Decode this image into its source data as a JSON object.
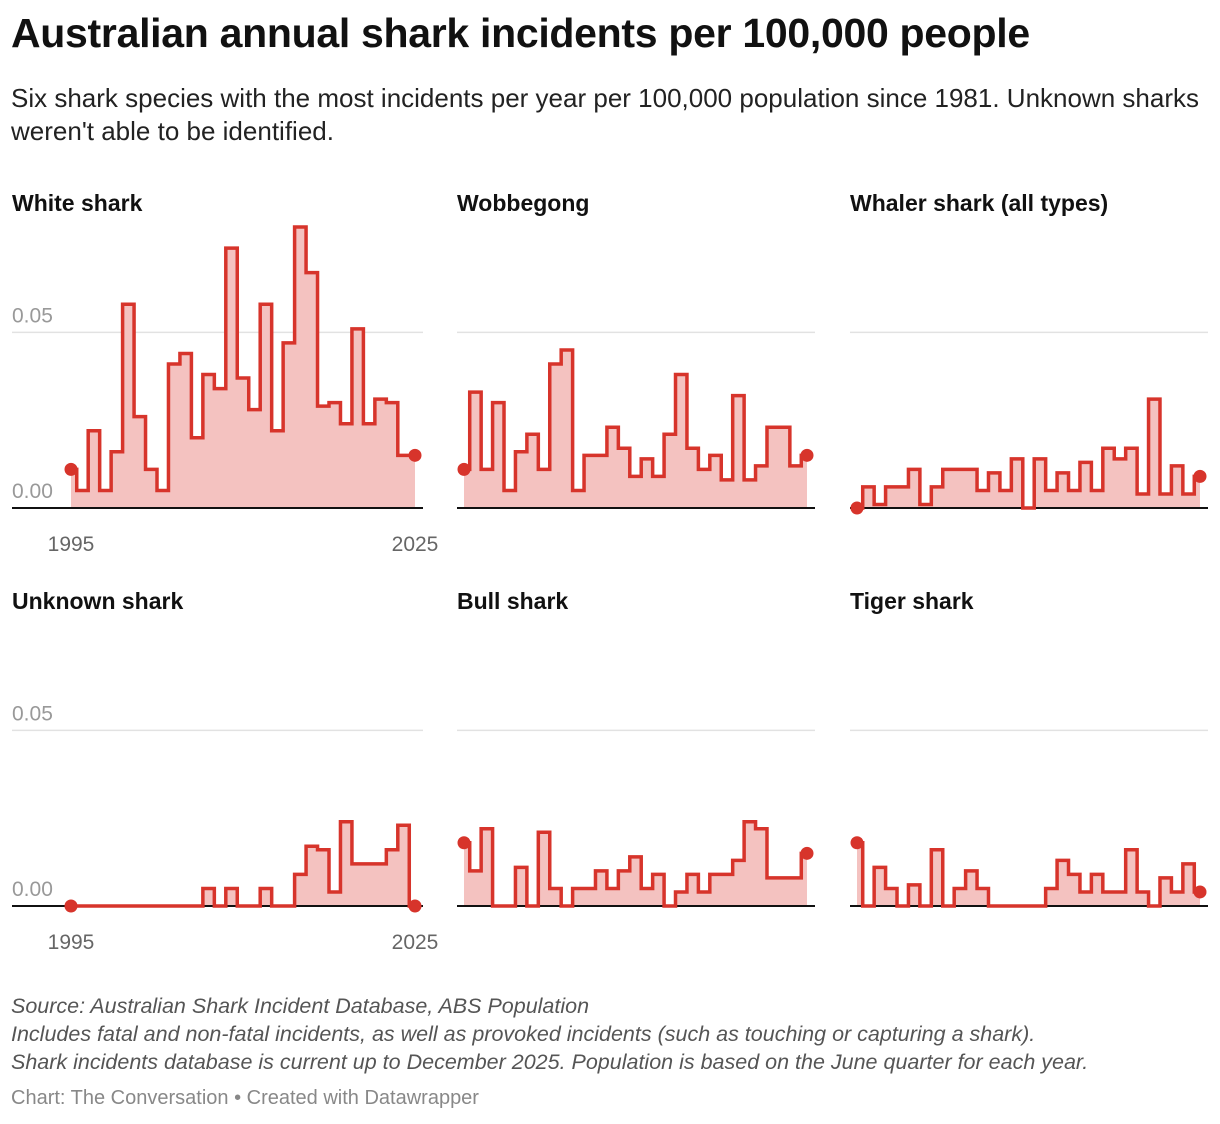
{
  "title": "Australian annual shark incidents per 100,000 people",
  "subtitle": "Six shark species with the most incidents per year per 100,000 population since 1981. Unknown sharks weren't able to be identified.",
  "footer": {
    "source": "Source: Australian Shark Incident Database, ABS Population",
    "note1": "Includes fatal and non-fatal incidents, as well as provoked incidents (such as touching or capturing a shark).",
    "note2": "Shark incidents database is current up to December 2025. Population is based on the June quarter for each year.",
    "credit": "Chart: The Conversation • Created with Datawrapper"
  },
  "colors": {
    "line": "#d7342b",
    "fill": "#f4c2c0",
    "grid": "#e2e2e2",
    "axis": "#111111",
    "tick": "#999999"
  },
  "chart_data": {
    "type": "area",
    "subtype": "step",
    "x": [
      1995,
      1996,
      1997,
      1998,
      1999,
      2000,
      2001,
      2002,
      2003,
      2004,
      2005,
      2006,
      2007,
      2008,
      2009,
      2010,
      2011,
      2012,
      2013,
      2014,
      2015,
      2016,
      2017,
      2018,
      2019,
      2020,
      2021,
      2022,
      2023,
      2024,
      2025
    ],
    "xticks": [
      1995,
      2025
    ],
    "xtick_labels": [
      "1995",
      "2025"
    ],
    "ylim": [
      0,
      0.08
    ],
    "yticks": [
      0,
      0.05
    ],
    "ytick_labels": [
      "0.00",
      "0.05"
    ],
    "grid": true,
    "series": [
      {
        "name": "White shark",
        "values": [
          0.011,
          0.005,
          0.022,
          0.005,
          0.016,
          0.058,
          0.026,
          0.011,
          0.005,
          0.041,
          0.044,
          0.02,
          0.038,
          0.034,
          0.074,
          0.037,
          0.028,
          0.058,
          0.022,
          0.047,
          0.08,
          0.067,
          0.029,
          0.03,
          0.024,
          0.051,
          0.024,
          0.031,
          0.03,
          0.015,
          0.015
        ]
      },
      {
        "name": "Wobbegong",
        "values": [
          0.011,
          0.033,
          0.011,
          0.03,
          0.005,
          0.016,
          0.021,
          0.011,
          0.041,
          0.045,
          0.005,
          0.015,
          0.015,
          0.023,
          0.017,
          0.009,
          0.014,
          0.009,
          0.021,
          0.038,
          0.017,
          0.011,
          0.015,
          0.008,
          0.032,
          0.008,
          0.012,
          0.023,
          0.023,
          0.012,
          0.015
        ]
      },
      {
        "name": "Whaler shark (all types)",
        "values": [
          0.0,
          0.006,
          0.001,
          0.006,
          0.006,
          0.011,
          0.001,
          0.006,
          0.011,
          0.011,
          0.011,
          0.005,
          0.01,
          0.005,
          0.014,
          0.0,
          0.014,
          0.005,
          0.01,
          0.005,
          0.013,
          0.005,
          0.017,
          0.014,
          0.017,
          0.004,
          0.031,
          0.004,
          0.012,
          0.004,
          0.009
        ]
      },
      {
        "name": "Unknown shark",
        "values": [
          0.0,
          0.0,
          0.0,
          0.0,
          0.0,
          0.0,
          0.0,
          0.0,
          0.0,
          0.0,
          0.0,
          0.0,
          0.005,
          0.0,
          0.005,
          0.0,
          0.0,
          0.005,
          0.0,
          0.0,
          0.009,
          0.017,
          0.016,
          0.004,
          0.024,
          0.012,
          0.012,
          0.012,
          0.016,
          0.023,
          0.0
        ]
      },
      {
        "name": "Bull shark",
        "values": [
          0.018,
          0.01,
          0.022,
          0.0,
          0.0,
          0.011,
          0.0,
          0.021,
          0.005,
          0.0,
          0.005,
          0.005,
          0.01,
          0.005,
          0.01,
          0.014,
          0.005,
          0.009,
          0.0,
          0.004,
          0.009,
          0.004,
          0.009,
          0.009,
          0.013,
          0.024,
          0.022,
          0.008,
          0.008,
          0.008,
          0.015
        ]
      },
      {
        "name": "Tiger shark",
        "values": [
          0.018,
          0.0,
          0.011,
          0.005,
          0.0,
          0.006,
          0.0,
          0.016,
          0.0,
          0.005,
          0.01,
          0.005,
          0.0,
          0.0,
          0.0,
          0.0,
          0.0,
          0.005,
          0.013,
          0.009,
          0.004,
          0.009,
          0.004,
          0.004,
          0.016,
          0.004,
          0.0,
          0.008,
          0.004,
          0.012,
          0.004
        ]
      }
    ]
  }
}
